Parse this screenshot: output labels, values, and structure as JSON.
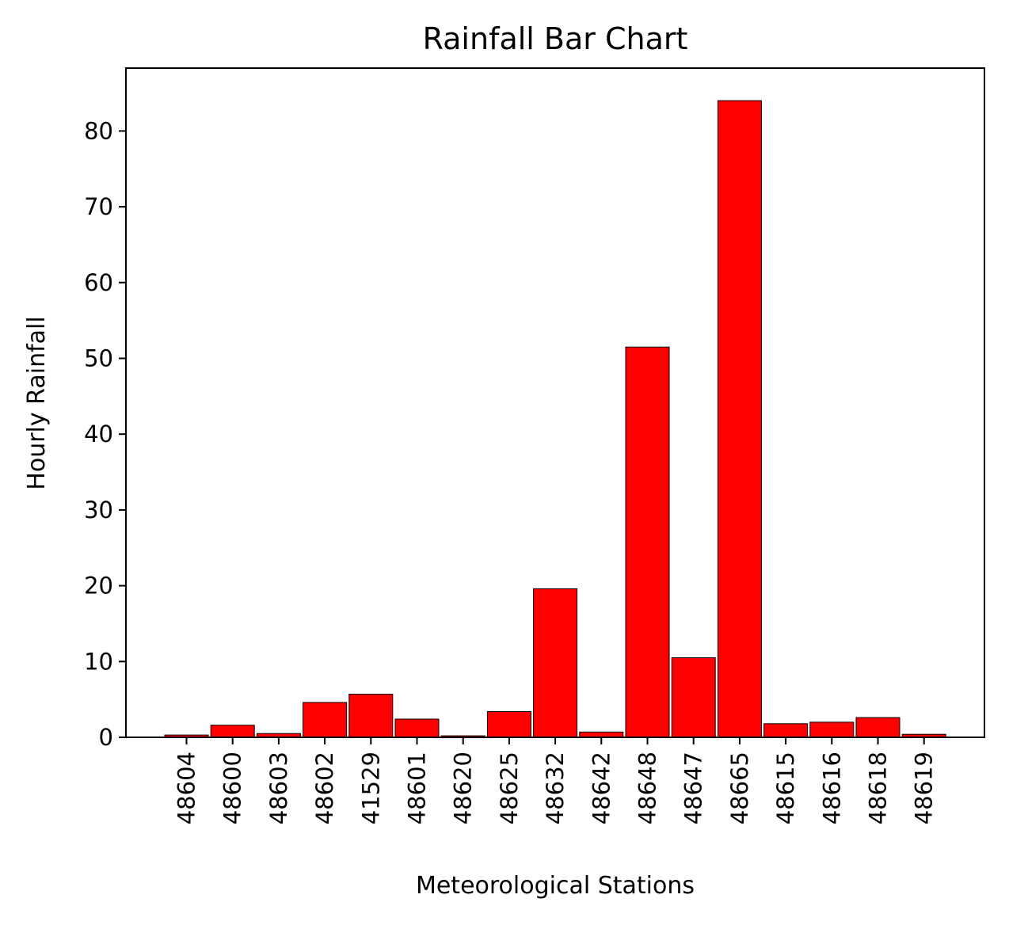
{
  "chart_data": {
    "type": "bar",
    "title": "Rainfall Bar Chart",
    "xlabel": "Meteorological Stations",
    "ylabel": "Hourly Rainfall",
    "categories": [
      "48604",
      "48600",
      "48603",
      "48602",
      "41529",
      "48601",
      "48620",
      "48625",
      "48632",
      "48642",
      "48648",
      "48647",
      "48665",
      "48615",
      "48616",
      "48618",
      "48619"
    ],
    "values": [
      0.3,
      1.6,
      0.5,
      4.6,
      5.7,
      2.4,
      0.2,
      3.4,
      19.6,
      0.7,
      51.5,
      10.5,
      84.0,
      1.8,
      2.0,
      2.6,
      0.4
    ],
    "ylim": [
      0,
      88.3
    ],
    "yticks": [
      0,
      10,
      20,
      30,
      40,
      50,
      60,
      70,
      80
    ],
    "ytick_labels": [
      "0",
      "10",
      "20",
      "30",
      "40",
      "50",
      "60",
      "70",
      "80"
    ],
    "bar_color": "#ff0000",
    "edge_color": "#000000",
    "grid": false,
    "legend": "none"
  }
}
